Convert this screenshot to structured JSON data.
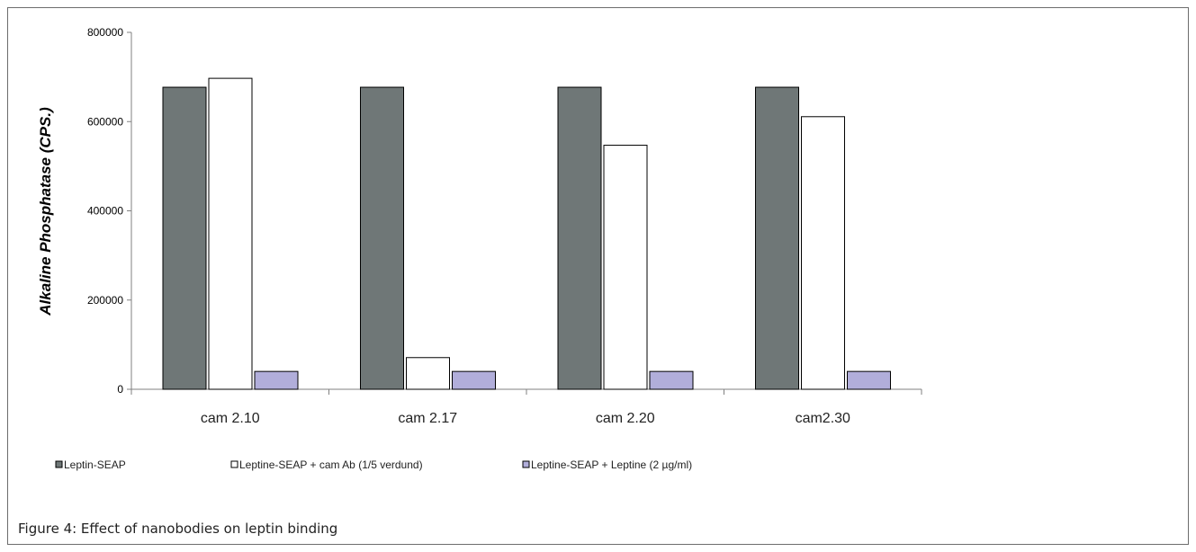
{
  "chart_data": {
    "type": "bar",
    "categories": [
      "cam 2.10",
      "cam 2.17",
      "cam 2.20",
      "cam2.30"
    ],
    "series": [
      {
        "name": "Leptin-SEAP",
        "values": [
          677000,
          677000,
          677000,
          677000
        ],
        "color": "#6f7777"
      },
      {
        "name": "Leptine-SEAP + cam Ab (1/5 verdund)",
        "values": [
          697000,
          71000,
          547000,
          611000
        ],
        "color": "#ffffff"
      },
      {
        "name": "Leptine-SEAP + Leptine (2 µg/ml)",
        "values": [
          40000,
          40000,
          40000,
          40000
        ],
        "color": "#b1aeda"
      }
    ],
    "yticks": [
      "0",
      "200000",
      "400000",
      "600000",
      "800000"
    ],
    "ylabel": "Alkaline Phosphatase (CPS.)",
    "xlabel": "",
    "ylim": [
      0,
      800000
    ],
    "grid": false,
    "legend_position": "bottom"
  },
  "figure": {
    "caption": "Figure 4: Effect of nanobodies on leptin binding"
  }
}
